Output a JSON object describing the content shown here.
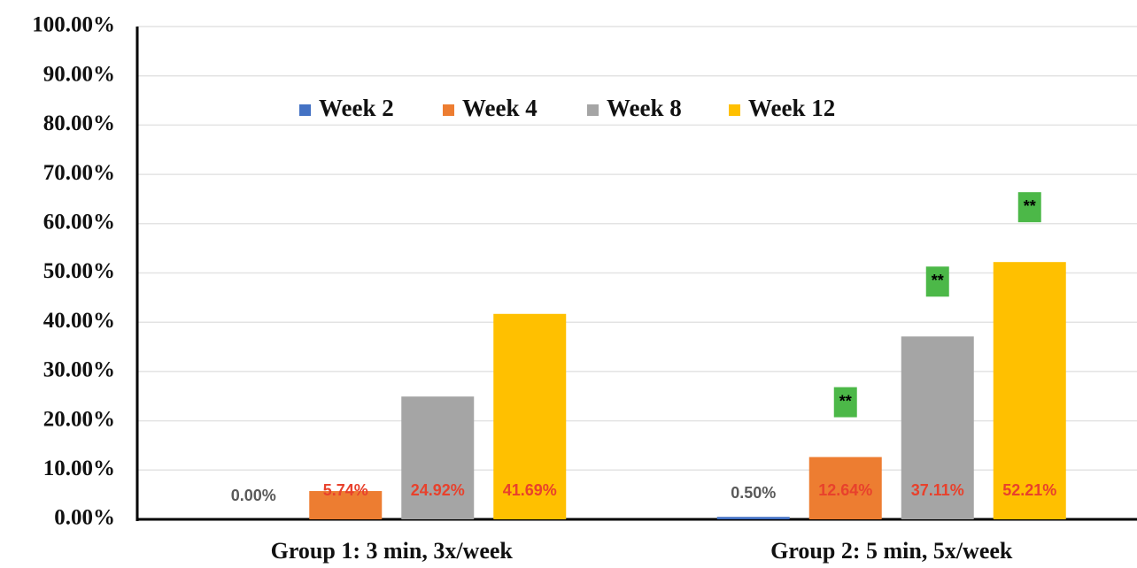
{
  "chart_data": {
    "type": "bar",
    "categories": [
      "Group 1: 3 min, 3x/week",
      "Group 2: 5 min, 5x/week"
    ],
    "series": [
      {
        "name": "Week 2",
        "color": "#4472c4",
        "label_color": "#595959",
        "values": [
          0,
          0.5
        ],
        "value_labels": [
          "0.00%",
          "0.50%"
        ],
        "significance": [
          null,
          null
        ]
      },
      {
        "name": "Week 4",
        "color": "#ed7d31",
        "label_color": "#e8412c",
        "values": [
          5.74,
          12.64
        ],
        "value_labels": [
          "5.74%",
          "12.64%"
        ],
        "significance": [
          null,
          "**"
        ]
      },
      {
        "name": "Week 8",
        "color": "#a5a5a5",
        "label_color": "#e8412c",
        "values": [
          24.92,
          37.11
        ],
        "value_labels": [
          "24.92%",
          "37.11%"
        ],
        "significance": [
          null,
          "**"
        ]
      },
      {
        "name": "Week 12",
        "color": "#ffc000",
        "label_color": "#e8412c",
        "values": [
          41.69,
          52.21
        ],
        "value_labels": [
          "41.69%",
          "52.21%"
        ],
        "significance": [
          null,
          "**"
        ]
      }
    ],
    "significance_color": "#4cb848",
    "ylim": [
      0,
      100
    ],
    "yticks": [
      {
        "value": 0,
        "label": "0.00%"
      },
      {
        "value": 10,
        "label": "10.00%"
      },
      {
        "value": 20,
        "label": "20.00%"
      },
      {
        "value": 30,
        "label": "30.00%"
      },
      {
        "value": 40,
        "label": "40.00%"
      },
      {
        "value": 50,
        "label": "50.00%"
      },
      {
        "value": 60,
        "label": "60.00%"
      },
      {
        "value": 70,
        "label": "70.00%"
      },
      {
        "value": 80,
        "label": "80.00%"
      },
      {
        "value": 90,
        "label": "90.00%"
      },
      {
        "value": 100,
        "label": "100.00%"
      }
    ],
    "grid": true,
    "legend": "top"
  }
}
